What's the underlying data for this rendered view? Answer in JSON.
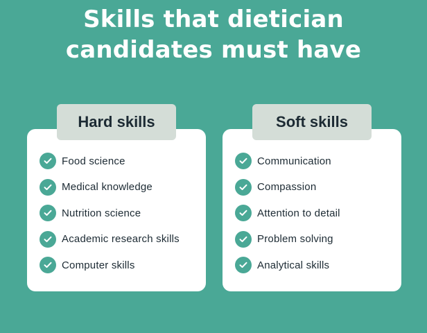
{
  "title": {
    "line1": "Skills that dietician",
    "line2": "candidates must have"
  },
  "colors": {
    "background": "#4aa896",
    "check": "#4aa896",
    "tab": "#d4ddd7",
    "text": "#1c2a33"
  },
  "icon": "check-circle-icon",
  "hard_skills": {
    "heading": "Hard skills",
    "items": [
      "Food science",
      "Medical knowledge",
      "Nutrition science",
      "Academic research skills",
      "Computer skills"
    ]
  },
  "soft_skills": {
    "heading": "Soft skills",
    "items": [
      "Communication",
      "Compassion",
      "Attention to detail",
      "Problem solving",
      "Analytical skills"
    ]
  }
}
